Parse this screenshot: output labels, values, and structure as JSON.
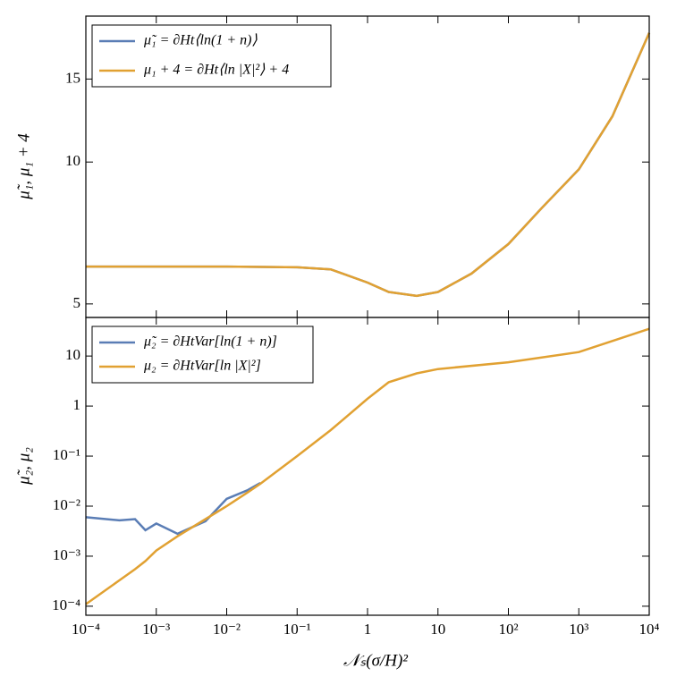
{
  "chart_data": [
    {
      "type": "line",
      "ylabel": "μ̃₁, μ₁ + 4",
      "log_x": true,
      "log_y": true,
      "x": [
        0.0001,
        0.001,
        0.01,
        0.1,
        0.3,
        1,
        2,
        5,
        10,
        30,
        100,
        300,
        1000,
        3000,
        10000
      ],
      "series": [
        {
          "name": "μ̃₁ = ∂Ht⟨ln(1 + n)⟩",
          "color": "#5a7db5",
          "values": [
            6.0,
            6.0,
            6.0,
            5.98,
            5.92,
            5.55,
            5.3,
            5.2,
            5.3,
            5.8,
            6.7,
            8.0,
            9.65,
            12.5,
            18.8
          ]
        },
        {
          "name": "μ₁ + 4 = ∂Ht⟨ln |X|²⟩ + 4",
          "color": "#e1a132",
          "values": [
            6.0,
            6.0,
            6.0,
            5.98,
            5.92,
            5.55,
            5.3,
            5.2,
            5.3,
            5.8,
            6.7,
            8.0,
            9.65,
            12.5,
            18.8
          ]
        }
      ],
      "xlim": [
        0.0001,
        10000
      ],
      "ylim": [
        4.68,
        20.4
      ],
      "yticks": [
        5,
        10,
        15
      ],
      "legend": "upper left"
    },
    {
      "type": "line",
      "ylabel": "μ̃₂, μ₂",
      "xlabel": "𝒩ₛ(σ/H)²",
      "log_x": true,
      "log_y": true,
      "x": [
        0.0001,
        0.0003,
        0.0005,
        0.0007,
        0.001,
        0.002,
        0.005,
        0.01,
        0.02,
        0.03,
        0.1,
        0.3,
        1,
        2,
        5,
        10,
        100,
        1000,
        10000
      ],
      "series": [
        {
          "name": "μ̃₂ = ∂HtVar[ln(1 + n)]",
          "color": "#5a7db5",
          "values": [
            0.006,
            0.0052,
            0.0055,
            0.0033,
            0.0045,
            0.0028,
            0.005,
            0.014,
            0.021,
            0.029,
            null,
            null,
            null,
            null,
            null,
            null,
            null,
            null,
            null
          ]
        },
        {
          "name": "μ₂ = ∂HtVar[ln |X|²]",
          "color": "#e1a132",
          "values": [
            0.00011,
            0.00033,
            0.00055,
            0.0008,
            0.0013,
            0.0025,
            0.0055,
            0.01,
            0.019,
            0.028,
            0.1,
            0.33,
            1.4,
            3,
            4.5,
            5.5,
            7.5,
            12,
            35
          ]
        }
      ],
      "xlim": [
        0.0001,
        10000
      ],
      "xticks": [
        {
          "value": 0.0001,
          "label": "10⁻⁴"
        },
        {
          "value": 0.001,
          "label": "10⁻³"
        },
        {
          "value": 0.01,
          "label": "10⁻²"
        },
        {
          "value": 0.1,
          "label": "10⁻¹"
        },
        1,
        10,
        {
          "value": 100,
          "label": "10²"
        },
        {
          "value": 1000,
          "label": "10³"
        },
        {
          "value": 10000,
          "label": "10⁴"
        }
      ],
      "ylim": [
        6.6e-05,
        59
      ],
      "yticks": [
        {
          "value": 0.0001,
          "label": "10⁻⁴"
        },
        {
          "value": 0.001,
          "label": "10⁻³"
        },
        {
          "value": 0.01,
          "label": "10⁻²"
        },
        {
          "value": 0.1,
          "label": "10⁻¹"
        },
        1,
        10
      ],
      "legend": "upper left"
    }
  ]
}
